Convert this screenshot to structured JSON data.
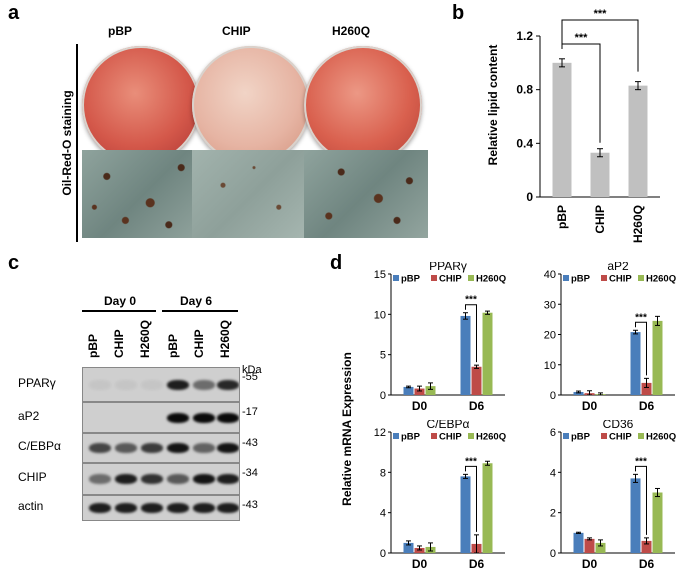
{
  "panels": {
    "a": "a",
    "b": "b",
    "c": "c",
    "d": "d"
  },
  "panel_a": {
    "columns": [
      "pBP",
      "CHIP",
      "H260Q"
    ],
    "side_label": "Oil-Red-O staining"
  },
  "panel_c": {
    "day_groups": [
      "Day 0",
      "Day 6"
    ],
    "lanes": [
      "pBP",
      "CHIP",
      "H260Q",
      "pBP",
      "CHIP",
      "H260Q"
    ],
    "kda_label": "kDa",
    "rows": [
      {
        "label": "PPARγ",
        "marker": "-55"
      },
      {
        "label": "aP2",
        "marker": "-17"
      },
      {
        "label": "C/EBPα",
        "marker": "-43"
      },
      {
        "label": "CHIP",
        "marker": "-34"
      },
      {
        "label": "actin",
        "marker": "-43"
      }
    ]
  },
  "colors": {
    "pBP": "#4a7ebb",
    "CHIP": "#be4b48",
    "H260Q": "#98b954",
    "bar_gray": "#c0c0c0"
  },
  "chart_data": [
    {
      "id": "b",
      "type": "bar",
      "ylabel": "Relative lipid content",
      "categories": [
        "pBP",
        "CHIP",
        "H260Q"
      ],
      "values": [
        1.0,
        0.33,
        0.83
      ],
      "errors": [
        0.03,
        0.03,
        0.03
      ],
      "ylim": [
        0,
        1.2
      ],
      "yticks": [
        "0",
        "0.4",
        "0.8",
        "1.2"
      ],
      "significance": [
        {
          "from": 0,
          "to": 1,
          "label": "***"
        },
        {
          "from": 0,
          "to": 2,
          "label": "***"
        }
      ]
    },
    {
      "id": "d1",
      "type": "bar",
      "title": "PPARγ",
      "categories": [
        "D0",
        "D6"
      ],
      "series": [
        {
          "name": "pBP",
          "values": [
            1.0,
            9.8
          ],
          "errors": [
            0.1,
            0.4
          ]
        },
        {
          "name": "CHIP",
          "values": [
            0.8,
            3.5
          ],
          "errors": [
            0.3,
            0.2
          ]
        },
        {
          "name": "H260Q",
          "values": [
            1.1,
            10.2
          ],
          "errors": [
            0.4,
            0.2
          ]
        }
      ],
      "ylim": [
        0,
        15
      ],
      "yticks": [
        "0",
        "5",
        "10",
        "15"
      ],
      "significance": "***"
    },
    {
      "id": "d2",
      "type": "bar",
      "title": "aP2",
      "categories": [
        "D0",
        "D6"
      ],
      "series": [
        {
          "name": "pBP",
          "values": [
            1.0,
            20.8
          ],
          "errors": [
            0.3,
            0.6
          ]
        },
        {
          "name": "CHIP",
          "values": [
            0.6,
            4.0
          ],
          "errors": [
            0.8,
            1.5
          ]
        },
        {
          "name": "H260Q",
          "values": [
            0.3,
            24.5
          ],
          "errors": [
            0.4,
            1.5
          ]
        }
      ],
      "ylim": [
        0,
        40
      ],
      "yticks": [
        "0",
        "10",
        "20",
        "30",
        "40"
      ],
      "significance": "***"
    },
    {
      "id": "d3",
      "type": "bar",
      "title": "C/EBPα",
      "categories": [
        "D0",
        "D6"
      ],
      "series": [
        {
          "name": "pBP",
          "values": [
            1.0,
            7.6
          ],
          "errors": [
            0.2,
            0.2
          ]
        },
        {
          "name": "CHIP",
          "values": [
            0.5,
            0.9
          ],
          "errors": [
            0.2,
            0.9
          ]
        },
        {
          "name": "H260Q",
          "values": [
            0.6,
            8.9
          ],
          "errors": [
            0.4,
            0.2
          ]
        }
      ],
      "ylim": [
        0,
        12
      ],
      "yticks": [
        "0",
        "4",
        "8",
        "12"
      ],
      "significance": "***"
    },
    {
      "id": "d4",
      "type": "bar",
      "title": "CD36",
      "categories": [
        "D0",
        "D6"
      ],
      "series": [
        {
          "name": "pBP",
          "values": [
            1.0,
            3.7
          ],
          "errors": [
            0.03,
            0.2
          ]
        },
        {
          "name": "CHIP",
          "values": [
            0.7,
            0.6
          ],
          "errors": [
            0.05,
            0.15
          ]
        },
        {
          "name": "H260Q",
          "values": [
            0.5,
            3.0
          ],
          "errors": [
            0.15,
            0.2
          ]
        }
      ],
      "ylim": [
        0,
        6
      ],
      "yticks": [
        "0",
        "2",
        "4",
        "6"
      ],
      "significance": "***"
    }
  ],
  "panel_d": {
    "ylabel": "Relative mRNA Expression"
  }
}
